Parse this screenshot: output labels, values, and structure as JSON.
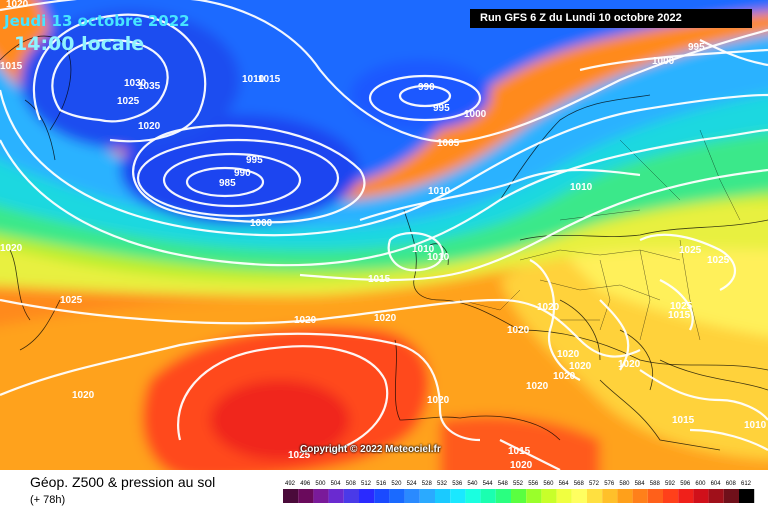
{
  "header": {
    "date": "Jeudi 13 octobre 2022",
    "local_time": "14:00 locale",
    "run": "Run GFS 6 Z du Lundi 10 octobre 2022"
  },
  "footer": {
    "title": "Géop. Z500 & pression au sol",
    "lead": "(+ 78h)",
    "copyright": "Copyright © 2022 Meteociel.fr"
  },
  "legend": {
    "ticks": [
      "492",
      "496",
      "500",
      "504",
      "508",
      "512",
      "516",
      "520",
      "524",
      "528",
      "532",
      "536",
      "540",
      "544",
      "548",
      "552",
      "556",
      "560",
      "564",
      "568",
      "572",
      "576",
      "580",
      "584",
      "588",
      "592",
      "596",
      "600",
      "604",
      "608",
      "612"
    ],
    "colors": [
      "#4a0a3a",
      "#6a0a5c",
      "#7a1a9a",
      "#6a2ad0",
      "#4a3ae8",
      "#2a2aff",
      "#1a4aff",
      "#1a6aff",
      "#2a8aff",
      "#2aaaff",
      "#1acaff",
      "#1ae8ff",
      "#1affe0",
      "#1affb0",
      "#2aff80",
      "#5aff40",
      "#9aff2a",
      "#c8ff2a",
      "#f0ff40",
      "#ffff60",
      "#ffe040",
      "#ffc02a",
      "#ffa01a",
      "#ff801a",
      "#ff601a",
      "#ff401a",
      "#f0201a",
      "#d0101a",
      "#a0101a",
      "#70101a",
      "#000000"
    ]
  },
  "map_labels": [
    "1020",
    "1015",
    "1030",
    "1035",
    "1025",
    "1020",
    "1010",
    "1015",
    "990",
    "995",
    "1000",
    "995",
    "1000",
    "995",
    "990",
    "985",
    "1000",
    "1005",
    "1010",
    "1010",
    "1010",
    "1010",
    "1015",
    "1020",
    "1020",
    "1025",
    "1020",
    "1020",
    "1020",
    "1020",
    "1020",
    "1020",
    "1020",
    "1020",
    "1025",
    "1025",
    "1025",
    "1015",
    "1020",
    "1015",
    "1015",
    "1020",
    "1010",
    "1025",
    "1020"
  ],
  "colors": {
    "contour": "#ffffff",
    "deep_blue": "#1a44e8",
    "light_blue": "#2aa8ff",
    "cyan": "#1ae0f0",
    "green": "#5adf3a",
    "yellow": "#ffef5a",
    "orange": "#ff9a1a",
    "red": "#ff3a1a"
  }
}
